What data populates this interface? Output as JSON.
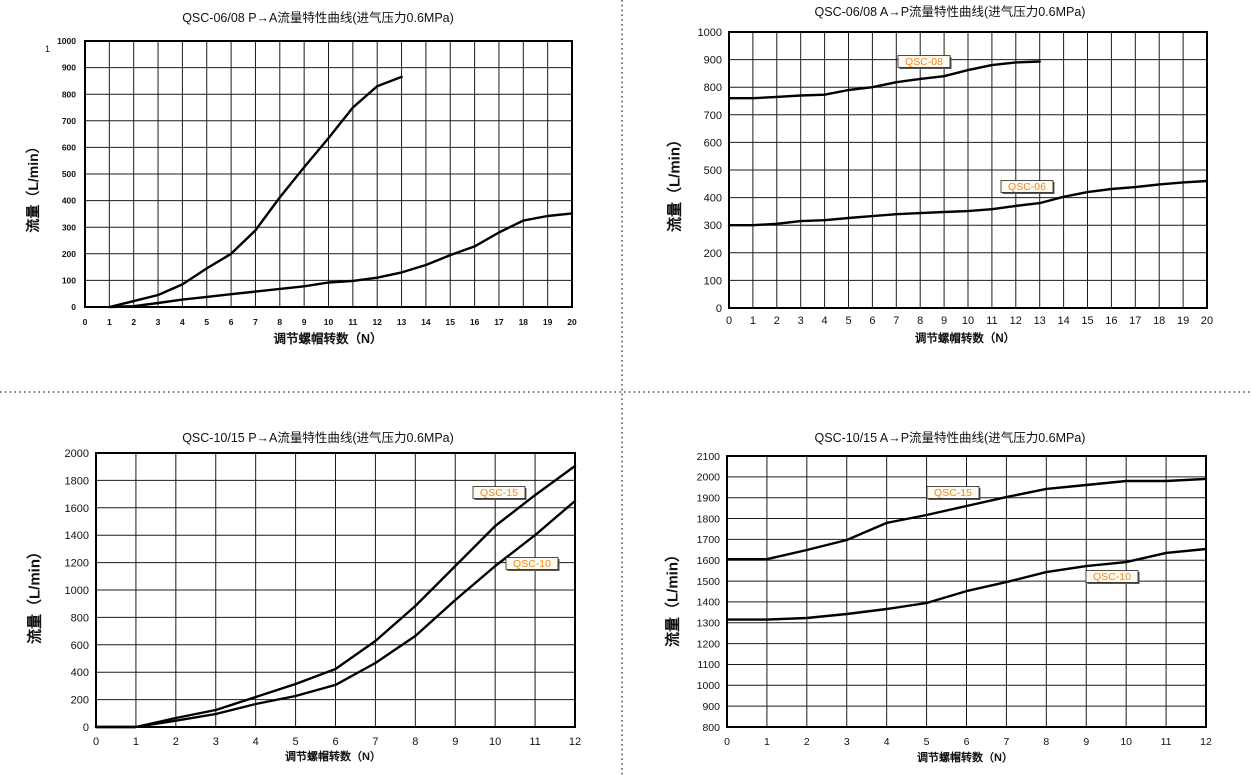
{
  "chart_data": [
    {
      "type": "line",
      "title": "QSC-06/08 P→A流量特性曲线(进气压力0.6MPa)",
      "xlabel": "调节螺帽转数（N）",
      "ylabel": "流量（L/min）",
      "corner_note": "1",
      "xlim": [
        0,
        20
      ],
      "ylim": [
        0,
        1000
      ],
      "xticks": [
        0,
        1,
        2,
        3,
        4,
        5,
        6,
        7,
        8,
        9,
        10,
        11,
        12,
        13,
        14,
        15,
        16,
        17,
        18,
        19,
        20
      ],
      "yticks": [
        0,
        100,
        200,
        300,
        400,
        500,
        600,
        700,
        800,
        900,
        1000
      ],
      "grid": true,
      "series": [
        {
          "x": [
            1,
            2,
            3,
            4,
            5,
            6,
            7,
            8,
            9,
            10,
            11,
            12,
            13
          ],
          "y": [
            0,
            22,
            45,
            85,
            145,
            200,
            288,
            412,
            525,
            635,
            750,
            830,
            865
          ]
        },
        {
          "x": [
            1,
            2,
            3,
            4,
            5,
            6,
            7,
            8,
            9,
            10,
            11,
            12,
            13,
            14,
            15,
            16,
            17,
            18,
            19,
            20
          ],
          "y": [
            0,
            3,
            15,
            28,
            38,
            48,
            58,
            68,
            78,
            92,
            98,
            110,
            130,
            158,
            195,
            228,
            280,
            325,
            342,
            352
          ]
        }
      ]
    },
    {
      "type": "line",
      "title": "QSC-06/08 A→P流量特性曲线(进气压力0.6MPa)",
      "xlabel": "调节螺帽转数（N）",
      "ylabel": "流量（L/min）",
      "xlim": [
        0,
        20
      ],
      "ylim": [
        0,
        1000
      ],
      "xticks": [
        0,
        1,
        2,
        3,
        4,
        5,
        6,
        7,
        8,
        9,
        10,
        11,
        12,
        13,
        14,
        15,
        16,
        17,
        18,
        19,
        20
      ],
      "yticks": [
        0,
        100,
        200,
        300,
        400,
        500,
        600,
        700,
        800,
        900,
        1000
      ],
      "grid": true,
      "series": [
        {
          "label": "QSC-08",
          "x": [
            0,
            1,
            2,
            3,
            4,
            5,
            6,
            7,
            8,
            9,
            10,
            11,
            12,
            13
          ],
          "y": [
            760,
            760,
            765,
            770,
            773,
            790,
            800,
            818,
            830,
            840,
            862,
            880,
            890,
            893
          ]
        },
        {
          "label": "QSC-06",
          "x": [
            0,
            1,
            2,
            3,
            4,
            5,
            6,
            7,
            8,
            9,
            10,
            11,
            12,
            13,
            14,
            15,
            16,
            17,
            18,
            19,
            20
          ],
          "y": [
            300,
            300,
            305,
            315,
            318,
            326,
            333,
            340,
            344,
            348,
            351,
            358,
            370,
            380,
            403,
            420,
            431,
            438,
            448,
            455,
            460
          ]
        }
      ]
    },
    {
      "type": "line",
      "title": "QSC-10/15 P→A流量特性曲线(进气压力0.6MPa)",
      "xlabel": "调节螺帽转数（N）",
      "ylabel": "流量（L/min）",
      "xlim": [
        0,
        12
      ],
      "ylim": [
        0,
        2000
      ],
      "xticks": [
        0,
        1,
        2,
        3,
        4,
        5,
        6,
        7,
        8,
        9,
        10,
        11,
        12
      ],
      "yticks": [
        0,
        200,
        400,
        600,
        800,
        1000,
        1200,
        1400,
        1600,
        1800,
        2000
      ],
      "grid": true,
      "series": [
        {
          "label": "QSC-15",
          "x": [
            0,
            1,
            2,
            3,
            4,
            5,
            6,
            7,
            8,
            9,
            10,
            11,
            12
          ],
          "y": [
            0,
            0,
            66,
            124,
            219,
            314,
            423,
            628,
            883,
            1175,
            1467,
            1693,
            1905
          ]
        },
        {
          "label": "QSC-10",
          "x": [
            0,
            1,
            2,
            3,
            4,
            5,
            6,
            7,
            8,
            9,
            10,
            11,
            12
          ],
          "y": [
            0,
            0,
            46,
            95,
            168,
            226,
            307,
            467,
            664,
            927,
            1175,
            1401,
            1650
          ]
        }
      ]
    },
    {
      "type": "line",
      "title": "QSC-10/15 A→P流量特性曲线(进气压力0.6MPa)",
      "xlabel": "调节螺帽转数（N）",
      "ylabel": "流量（L/min）",
      "xlim": [
        0,
        12
      ],
      "ylim": [
        800,
        2100
      ],
      "xticks": [
        0,
        1,
        2,
        3,
        4,
        5,
        6,
        7,
        8,
        9,
        10,
        11,
        12
      ],
      "yticks": [
        800,
        900,
        1000,
        1100,
        1200,
        1300,
        1400,
        1500,
        1600,
        1700,
        1800,
        1900,
        2000,
        2100
      ],
      "grid": true,
      "series": [
        {
          "label": "QSC-15",
          "x": [
            0,
            1,
            2,
            3,
            4,
            5,
            6,
            7,
            8,
            9,
            10,
            11,
            12
          ],
          "y": [
            1605,
            1605,
            1649,
            1697,
            1779,
            1817,
            1860,
            1903,
            1942,
            1961,
            1980,
            1980,
            1990
          ]
        },
        {
          "label": "QSC-10",
          "x": [
            0,
            1,
            2,
            3,
            4,
            5,
            6,
            7,
            8,
            9,
            10,
            11,
            12
          ],
          "y": [
            1315,
            1315,
            1323,
            1342,
            1366,
            1395,
            1452,
            1495,
            1543,
            1572,
            1591,
            1635,
            1654
          ]
        }
      ]
    }
  ]
}
